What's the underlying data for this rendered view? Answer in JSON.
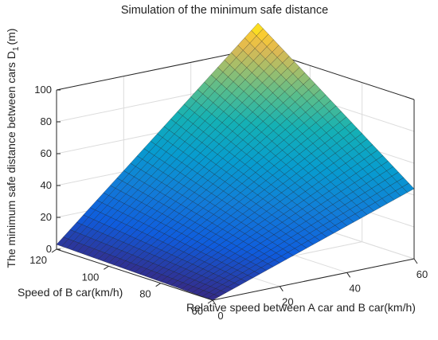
{
  "chart_data": {
    "type": "surface",
    "title": "Simulation of the minimum safe distance",
    "xlabel": "Relative speed between A car and B car(km/h)",
    "ylabel": "Speed of B car(km/h)",
    "zlabel": "The minimum safe distance between cars D",
    "zlabel_subscript": "1",
    "zlabel_unit": "(m)",
    "xlim": [
      0,
      60
    ],
    "ylim": [
      60,
      120
    ],
    "zlim": [
      0,
      100
    ],
    "xticks": [
      0,
      20,
      40,
      60
    ],
    "yticks": [
      60,
      80,
      100,
      120
    ],
    "zticks": [
      0,
      20,
      40,
      60,
      80,
      100
    ],
    "grid": true,
    "colormap": "parula",
    "corner_values": [
      {
        "x": 0,
        "y": 60,
        "z": 0
      },
      {
        "x": 60,
        "y": 60,
        "z": 44
      },
      {
        "x": 0,
        "y": 120,
        "z": 3
      },
      {
        "x": 60,
        "y": 120,
        "z": 116
      }
    ]
  }
}
